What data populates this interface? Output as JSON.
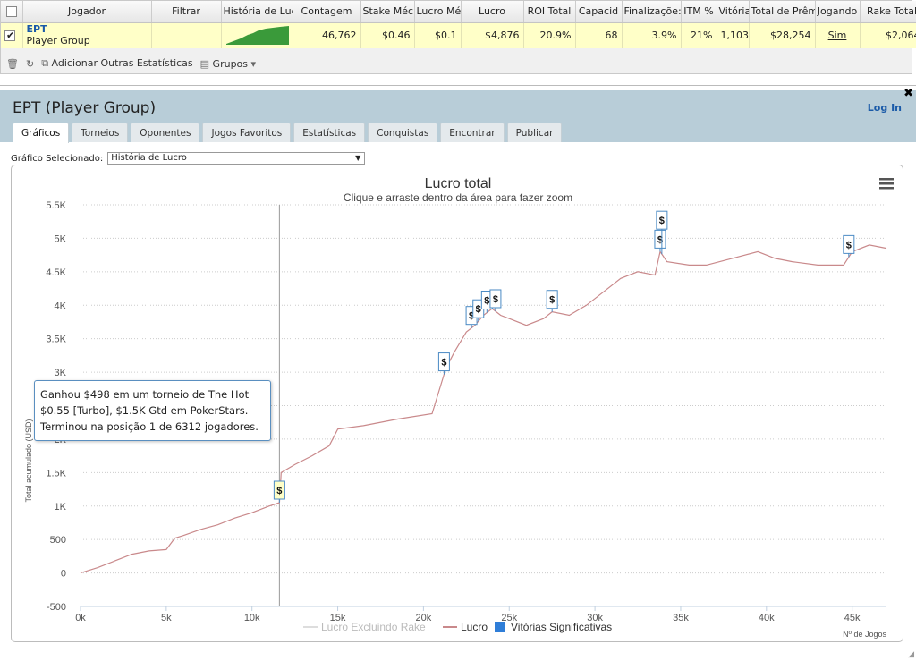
{
  "table": {
    "headers": [
      "Jogador",
      "Filtrar",
      "História de Luc",
      "Contagem",
      "Stake Méc",
      "Lucro Mé",
      "Lucro",
      "ROI Total",
      "Capacid",
      "Finalizaçõe:",
      "ITM %",
      "Vitória",
      "Total de Prêm",
      "Jogando",
      "Rake Total"
    ],
    "row": {
      "player_name": "EPT",
      "player_group": "Player Group",
      "count": "46,762",
      "avg_stake": "$0.46",
      "avg_profit": "$0.1",
      "profit": "$4,876",
      "roi": "20.9%",
      "capacity": "68",
      "finals": "3.9%",
      "itm": "21%",
      "wins": "1,103",
      "prize_total": "$28,254",
      "playing": "Sim",
      "rake_total": "$2,064",
      "remove": "x"
    }
  },
  "toolbar": {
    "add_stats": "Adicionar Outras Estatísticas",
    "groups": "Grupos"
  },
  "panel": {
    "title": "EPT (Player Group)",
    "login": "Log In",
    "tabs": [
      "Gráficos",
      "Torneios",
      "Oponentes",
      "Jogos Favoritos",
      "Estatísticas",
      "Conquistas",
      "Encontrar",
      "Publicar"
    ],
    "selected_chart_label": "Gráfico Selecionado:",
    "selected_chart": "História de Lucro"
  },
  "chart_data": {
    "type": "line",
    "title": "Lucro total",
    "subtitle": "Clique e arraste dentro da área para fazer zoom",
    "xlabel": "Nº de Jogos",
    "ylabel": "Total acumulado (USD)",
    "xlim": [
      0,
      47000
    ],
    "ylim": [
      -500,
      5500
    ],
    "xticks": [
      "0k",
      "5k",
      "10k",
      "15k",
      "20k",
      "25k",
      "30k",
      "35k",
      "40k",
      "45k"
    ],
    "yticks": [
      "-500",
      "0",
      "500",
      "1K",
      "1.5K",
      "2K",
      "2.5K",
      "3K",
      "3.5K",
      "4K",
      "4.5K",
      "5K",
      "5.5K"
    ],
    "legend": [
      "Lucro Excluindo Rake",
      "Lucro",
      "Vitórias Significativas"
    ],
    "legend_position": "bottom",
    "series": [
      {
        "name": "Lucro",
        "color": "#c9898b",
        "x": [
          0,
          1000,
          2000,
          3000,
          4000,
          5000,
          5500,
          6000,
          7000,
          8000,
          9000,
          10000,
          11000,
          11600,
          11700,
          12500,
          13500,
          14500,
          15000,
          16500,
          18500,
          20500,
          21000,
          21300,
          21800,
          22500,
          23000,
          23500,
          24000,
          24500,
          25000,
          26000,
          27000,
          27500,
          28500,
          29500,
          30500,
          31500,
          32500,
          33500,
          33800,
          34200,
          35500,
          36500,
          38000,
          39500,
          40500,
          41500,
          43000,
          44500,
          45000,
          46000,
          47000
        ],
        "y": [
          0,
          80,
          180,
          280,
          330,
          350,
          520,
          560,
          650,
          720,
          820,
          900,
          1000,
          1050,
          1500,
          1620,
          1750,
          1900,
          2150,
          2200,
          2300,
          2380,
          2800,
          3050,
          3300,
          3600,
          3700,
          3850,
          3950,
          3850,
          3800,
          3700,
          3800,
          3900,
          3850,
          4000,
          4200,
          4400,
          4500,
          4450,
          4800,
          4650,
          4600,
          4600,
          4700,
          4800,
          4700,
          4650,
          4600,
          4600,
          4800,
          4900,
          4850
        ]
      },
      {
        "name": "Lucro Excluindo Rake",
        "color": "#dddddd",
        "x": [],
        "y": []
      }
    ],
    "significant_wins": [
      11600,
      21200,
      22800,
      23200,
      23700,
      24200,
      27500,
      33800,
      33900,
      44800
    ],
    "tooltip": "Ganhou $498 em um torneio de The Hot $0.55 [Turbo], $1.5K Gtd em PokerStars. Terminou na posição 1 de 6312 jogadores.",
    "colors": {
      "grid": "#cccccc",
      "crosshair": "#999999",
      "flag_border": "#4a8ac4",
      "legend_wins": "#2f7ed8"
    }
  }
}
